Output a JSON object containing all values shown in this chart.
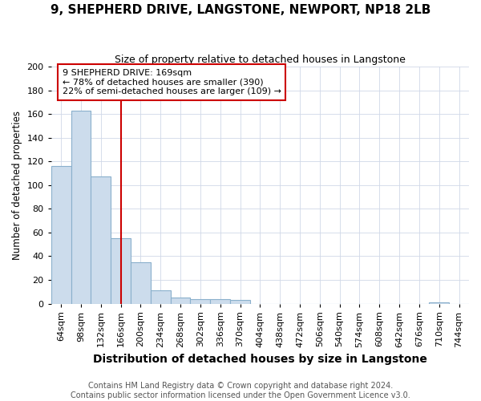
{
  "title": "9, SHEPHERD DRIVE, LANGSTONE, NEWPORT, NP18 2LB",
  "subtitle": "Size of property relative to detached houses in Langstone",
  "xlabel": "Distribution of detached houses by size in Langstone",
  "ylabel": "Number of detached properties",
  "footer_line1": "Contains HM Land Registry data © Crown copyright and database right 2024.",
  "footer_line2": "Contains public sector information licensed under the Open Government Licence v3.0.",
  "bin_labels": [
    "64sqm",
    "98sqm",
    "132sqm",
    "166sqm",
    "200sqm",
    "234sqm",
    "268sqm",
    "302sqm",
    "336sqm",
    "370sqm",
    "404sqm",
    "438sqm",
    "472sqm",
    "506sqm",
    "540sqm",
    "574sqm",
    "608sqm",
    "642sqm",
    "676sqm",
    "710sqm",
    "744sqm"
  ],
  "bar_heights": [
    116,
    163,
    107,
    55,
    35,
    11,
    5,
    4,
    4,
    3,
    0,
    0,
    0,
    0,
    0,
    0,
    0,
    0,
    0,
    1,
    0
  ],
  "bar_color": "#ccdcec",
  "bar_edge_color": "#8ab0cc",
  "red_line_x": 166,
  "annotation_text_line1": "9 SHEPHERD DRIVE: 169sqm",
  "annotation_text_line2": "← 78% of detached houses are smaller (390)",
  "annotation_text_line3": "22% of semi-detached houses are larger (109) →",
  "red_line_color": "#cc0000",
  "annotation_box_facecolor": "#ffffff",
  "annotation_box_edgecolor": "#cc0000",
  "grid_color": "#d0d8e8",
  "background_color": "#ffffff",
  "ylim": [
    0,
    200
  ],
  "yticks": [
    0,
    20,
    40,
    60,
    80,
    100,
    120,
    140,
    160,
    180,
    200
  ],
  "title_fontsize": 11,
  "subtitle_fontsize": 9,
  "xlabel_fontsize": 10,
  "ylabel_fontsize": 8.5,
  "tick_fontsize": 8,
  "annotation_fontsize": 8,
  "footer_fontsize": 7
}
